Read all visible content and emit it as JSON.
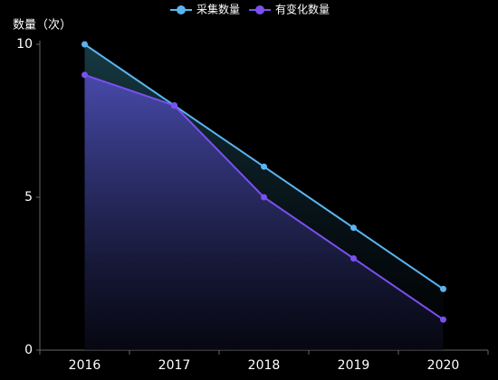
{
  "chart_data": {
    "type": "line",
    "y_label": "数量（次）",
    "categories": [
      "2016",
      "2017",
      "2018",
      "2019",
      "2020"
    ],
    "series": [
      {
        "name": "采集数量",
        "color": "#5ab4f0",
        "values": [
          10,
          8,
          6,
          4,
          2
        ]
      },
      {
        "name": "有变化数量",
        "color": "#7b4ff0",
        "values": [
          9,
          8,
          5,
          3,
          1
        ]
      }
    ],
    "ylim": [
      0,
      10
    ],
    "yticks": [
      0,
      5,
      10
    ],
    "area": true,
    "legend": "top"
  }
}
